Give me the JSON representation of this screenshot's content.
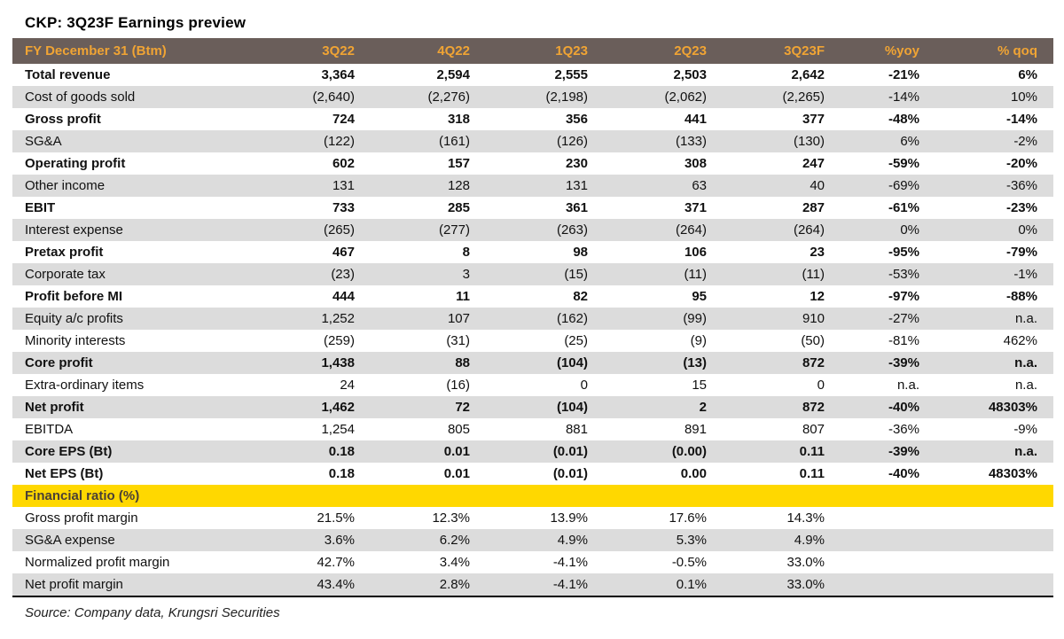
{
  "title": "CKP: 3Q23F Earnings preview",
  "source": "Source: Company data, Krungsri Securities",
  "colors": {
    "header_bg": "#6a5e5a",
    "header_text": "#f0a434",
    "section_bg": "#ffd800",
    "shade_bg": "#dcdcdc"
  },
  "table": {
    "columns": [
      "FY December 31 (Btm)",
      "3Q22",
      "4Q22",
      "1Q23",
      "2Q23",
      "3Q23F",
      "%yoy",
      "% qoq"
    ],
    "rows": [
      {
        "label": "Total revenue",
        "values": [
          "3,364",
          "2,594",
          "2,555",
          "2,503",
          "2,642",
          "-21%",
          "6%"
        ],
        "bold": true,
        "shade": false
      },
      {
        "label": "Cost of goods sold",
        "values": [
          "(2,640)",
          "(2,276)",
          "(2,198)",
          "(2,062)",
          "(2,265)",
          "-14%",
          "10%"
        ],
        "bold": false,
        "shade": true
      },
      {
        "label": "Gross profit",
        "values": [
          "724",
          "318",
          "356",
          "441",
          "377",
          "-48%",
          "-14%"
        ],
        "bold": true,
        "shade": false
      },
      {
        "label": "SG&A",
        "values": [
          "(122)",
          "(161)",
          "(126)",
          "(133)",
          "(130)",
          "6%",
          "-2%"
        ],
        "bold": false,
        "shade": true
      },
      {
        "label": "Operating profit",
        "values": [
          "602",
          "157",
          "230",
          "308",
          "247",
          "-59%",
          "-20%"
        ],
        "bold": true,
        "shade": false
      },
      {
        "label": "Other income",
        "values": [
          "131",
          "128",
          "131",
          "63",
          "40",
          "-69%",
          "-36%"
        ],
        "bold": false,
        "shade": true
      },
      {
        "label": "EBIT",
        "values": [
          "733",
          "285",
          "361",
          "371",
          "287",
          "-61%",
          "-23%"
        ],
        "bold": true,
        "shade": false
      },
      {
        "label": "Interest expense",
        "values": [
          "(265)",
          "(277)",
          "(263)",
          "(264)",
          "(264)",
          "0%",
          "0%"
        ],
        "bold": false,
        "shade": true
      },
      {
        "label": "Pretax profit",
        "values": [
          "467",
          "8",
          "98",
          "106",
          "23",
          "-95%",
          "-79%"
        ],
        "bold": true,
        "shade": false
      },
      {
        "label": "Corporate tax",
        "values": [
          "(23)",
          "3",
          "(15)",
          "(11)",
          "(11)",
          "-53%",
          "-1%"
        ],
        "bold": false,
        "shade": true
      },
      {
        "label": "Profit before MI",
        "values": [
          "444",
          "11",
          "82",
          "95",
          "12",
          "-97%",
          "-88%"
        ],
        "bold": true,
        "shade": false
      },
      {
        "label": "Equity a/c profits",
        "values": [
          "1,252",
          "107",
          "(162)",
          "(99)",
          "910",
          "-27%",
          "n.a."
        ],
        "bold": false,
        "shade": true
      },
      {
        "label": "Minority interests",
        "values": [
          "(259)",
          "(31)",
          "(25)",
          "(9)",
          "(50)",
          "-81%",
          "462%"
        ],
        "bold": false,
        "shade": false
      },
      {
        "label": "Core profit",
        "values": [
          "1,438",
          "88",
          "(104)",
          "(13)",
          "872",
          "-39%",
          "n.a."
        ],
        "bold": true,
        "shade": true
      },
      {
        "label": "Extra-ordinary items",
        "values": [
          "24",
          "(16)",
          "0",
          "15",
          "0",
          "n.a.",
          "n.a."
        ],
        "bold": false,
        "shade": false
      },
      {
        "label": "Net profit",
        "values": [
          "1,462",
          "72",
          "(104)",
          "2",
          "872",
          "-40%",
          "48303%"
        ],
        "bold": true,
        "shade": true
      },
      {
        "label": "EBITDA",
        "values": [
          "1,254",
          "805",
          "881",
          "891",
          "807",
          "-36%",
          "-9%"
        ],
        "bold": false,
        "shade": false
      },
      {
        "label": "Core EPS (Bt)",
        "values": [
          "0.18",
          "0.01",
          "(0.01)",
          "(0.00)",
          "0.11",
          "-39%",
          "n.a."
        ],
        "bold": true,
        "shade": true
      },
      {
        "label": "Net EPS (Bt)",
        "values": [
          "0.18",
          "0.01",
          "(0.01)",
          "0.00",
          "0.11",
          "-40%",
          "48303%"
        ],
        "bold": true,
        "shade": false
      }
    ],
    "section_header": "Financial ratio (%)",
    "ratio_rows": [
      {
        "label": "Gross profit margin",
        "values": [
          "21.5%",
          "12.3%",
          "13.9%",
          "17.6%",
          "14.3%",
          "",
          ""
        ],
        "bold": false,
        "shade": false
      },
      {
        "label": "SG&A expense",
        "values": [
          "3.6%",
          "6.2%",
          "4.9%",
          "5.3%",
          "4.9%",
          "",
          ""
        ],
        "bold": false,
        "shade": true
      },
      {
        "label": "Normalized profit margin",
        "values": [
          "42.7%",
          "3.4%",
          "-4.1%",
          "-0.5%",
          "33.0%",
          "",
          ""
        ],
        "bold": false,
        "shade": false
      },
      {
        "label": "Net profit margin",
        "values": [
          "43.4%",
          "2.8%",
          "-4.1%",
          "0.1%",
          "33.0%",
          "",
          ""
        ],
        "bold": false,
        "shade": true
      }
    ]
  }
}
